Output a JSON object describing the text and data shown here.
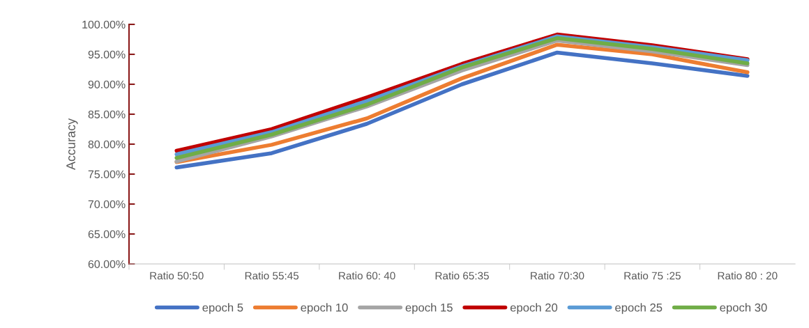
{
  "chart_data": {
    "type": "line",
    "ylabel": "Accuracy",
    "categories": [
      "Ratio 50:50",
      "Ratio 55:45",
      "Ratio 60: 40",
      "Ratio 65:35",
      "Ratio 70:30",
      "Ratio 75 :25",
      "Ratio 80 : 20"
    ],
    "series": [
      {
        "name": "epoch 5",
        "color": "#4472c4",
        "values": [
          76.1,
          78.5,
          83.4,
          90.0,
          95.3,
          93.5,
          91.4
        ]
      },
      {
        "name": "epoch 10",
        "color": "#ed7d31",
        "values": [
          77.0,
          79.9,
          84.3,
          91.0,
          96.6,
          95.0,
          92.0
        ]
      },
      {
        "name": "epoch 15",
        "color": "#a5a5a5",
        "values": [
          77.1,
          81.3,
          86.3,
          92.3,
          97.3,
          95.5,
          93.2
        ]
      },
      {
        "name": "epoch 20",
        "color": "#c00000",
        "values": [
          78.9,
          82.5,
          87.8,
          93.4,
          98.3,
          96.5,
          94.2
        ]
      },
      {
        "name": "epoch 25",
        "color": "#5b9bd5",
        "values": [
          78.3,
          82.0,
          87.2,
          93.0,
          98.0,
          96.2,
          94.0
        ]
      },
      {
        "name": "epoch 30",
        "color": "#70ad47",
        "values": [
          77.7,
          81.6,
          86.6,
          92.8,
          97.7,
          95.9,
          93.5
        ]
      }
    ],
    "ylim": [
      60,
      100
    ],
    "yticks": [
      {
        "value": 60,
        "label": "60.00%"
      },
      {
        "value": 65,
        "label": "65.00%"
      },
      {
        "value": 70,
        "label": "70.00%"
      },
      {
        "value": 75,
        "label": "75.00%"
      },
      {
        "value": 80,
        "label": "80.00%"
      },
      {
        "value": 85,
        "label": "85.00%"
      },
      {
        "value": 90,
        "label": "90.00%"
      },
      {
        "value": 95,
        "label": "95.00%"
      },
      {
        "value": 100,
        "label": "100.00%"
      }
    ],
    "grid": false,
    "legend": "bottom",
    "marker": "none",
    "line_style": "solid"
  }
}
